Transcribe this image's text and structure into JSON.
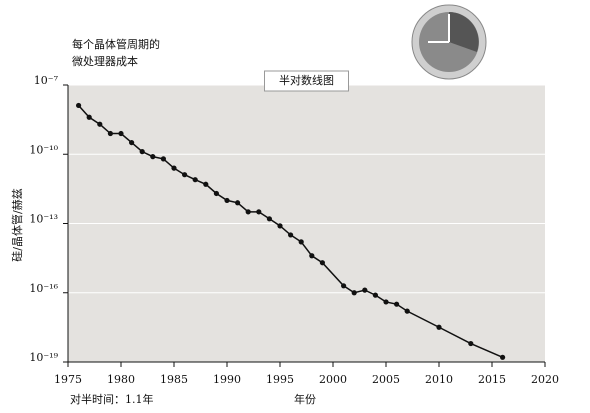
{
  "chart_data": {
    "type": "line",
    "title": [
      "每个晶体管周期的",
      "微处理器成本"
    ],
    "subtitle": "半对数线图",
    "ylabel": "硅/晶体管/赫兹",
    "xlabel": "年份",
    "annotation": "对半时间：1.1年",
    "log_y": true,
    "grid": true,
    "color": "#111111",
    "background": "#e4e2df",
    "x": [
      1976,
      1977,
      1978,
      1979,
      1980,
      1981,
      1982,
      1983,
      1984,
      1985,
      1986,
      1987,
      1988,
      1989,
      1990,
      1991,
      1992,
      1993,
      1994,
      1995,
      1996,
      1997,
      1998,
      1999,
      2001,
      2002,
      2003,
      2004,
      2005,
      2006,
      2007,
      2010,
      2013,
      2016
    ],
    "values": [
      1.3e-08,
      4e-09,
      2e-09,
      7.9e-10,
      7.9e-10,
      3.2e-10,
      1.3e-10,
      7.9e-11,
      6.3e-11,
      2.5e-11,
      1.3e-11,
      7.9e-12,
      5e-12,
      2e-12,
      1e-12,
      7.9e-13,
      3.2e-13,
      3.2e-13,
      1.6e-13,
      7.9e-14,
      3.2e-14,
      1.6e-14,
      4e-15,
      2e-15,
      2e-16,
      1e-16,
      1.3e-16,
      7.9e-17,
      4e-17,
      3.2e-17,
      1.6e-17,
      3.2e-18,
      6.3e-19,
      1.6e-19
    ],
    "xlim": [
      1975,
      2020
    ],
    "xticks": [
      1975,
      1980,
      1985,
      1990,
      1995,
      2000,
      2005,
      2010,
      2015,
      2020
    ],
    "ylim": [
      1e-19,
      1e-07
    ],
    "yticks": [
      {
        "value": 1e-19,
        "label": "10⁻¹⁹"
      },
      {
        "value": 1e-16,
        "label": "10⁻¹⁶"
      },
      {
        "value": 1e-13,
        "label": "10⁻¹³"
      },
      {
        "value": 1e-10,
        "label": "10⁻¹⁰"
      },
      {
        "value": 1e-07,
        "label": "10⁻⁷"
      }
    ]
  }
}
